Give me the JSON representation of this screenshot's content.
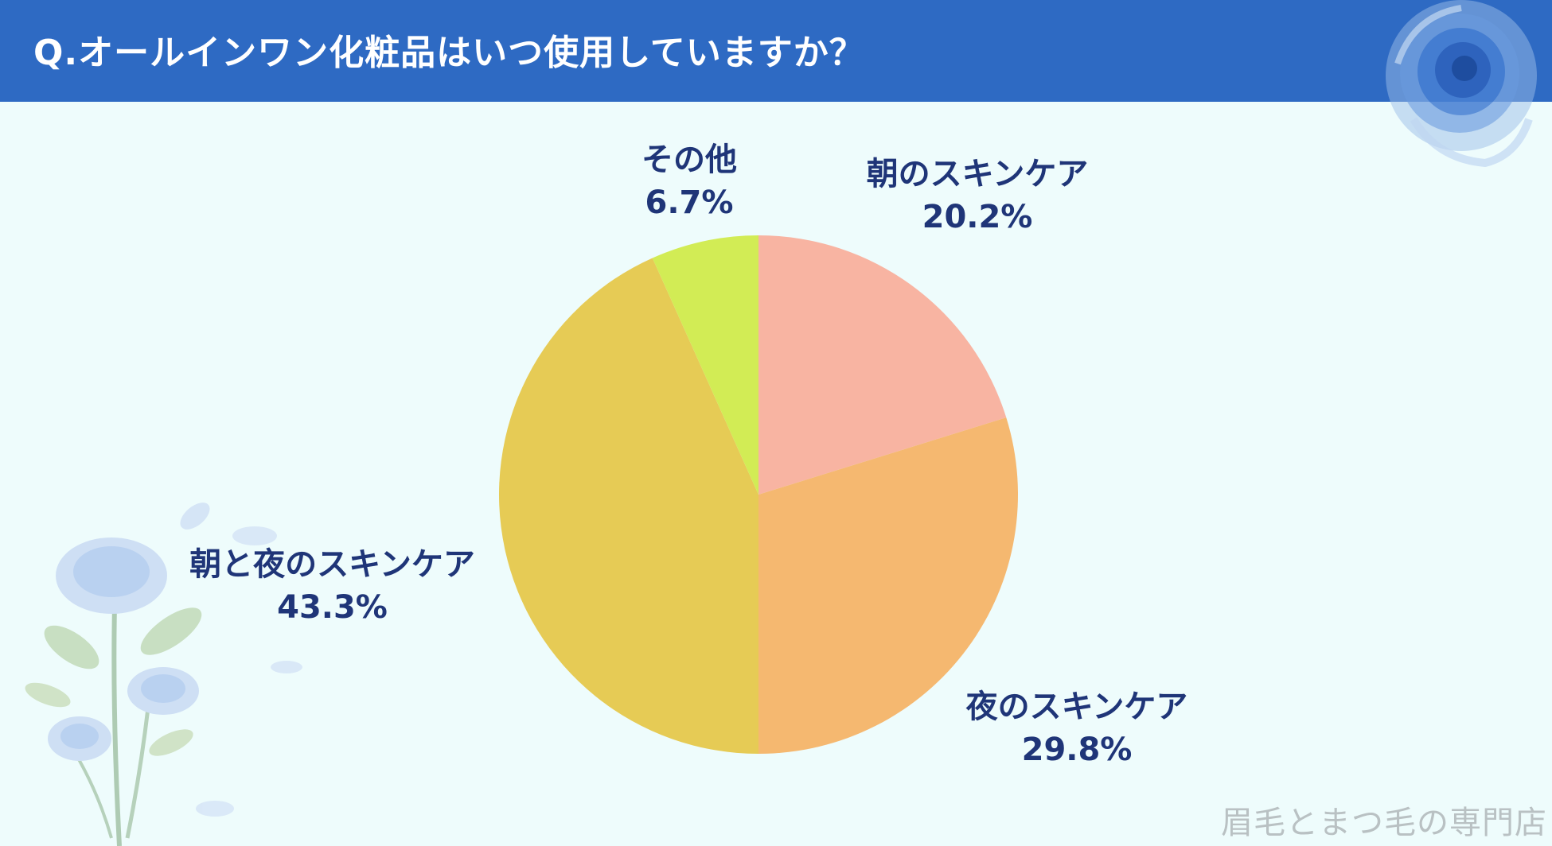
{
  "header": {
    "title": "Q.オールインワン化粧品はいつ使用していますか？"
  },
  "chart_data": {
    "type": "pie",
    "title": "",
    "start_angle": "12 o'clock",
    "direction": "clockwise",
    "slices": [
      {
        "label": "朝のスキンケア",
        "value": 20.2,
        "value_text": "20.2%",
        "color": "#f8b4a2"
      },
      {
        "label": "夜のスキンケア",
        "value": 29.8,
        "value_text": "29.8%",
        "color": "#f5b870"
      },
      {
        "label": "朝と夜のスキンケア",
        "value": 43.3,
        "value_text": "43.3%",
        "color": "#e6cb55"
      },
      {
        "label": "その他",
        "value": 6.7,
        "value_text": "6.7%",
        "color": "#d2ec55"
      }
    ]
  },
  "footer": {
    "watermark": "眉毛とまつ毛の専門店"
  },
  "colors": {
    "header_bg": "#2e6ac3",
    "background": "#eefcfc",
    "label_text": "#1f3578"
  },
  "decorations": {
    "top_right": "blue-rose-icon",
    "bottom_left": "blue-rose-stems-icon"
  }
}
